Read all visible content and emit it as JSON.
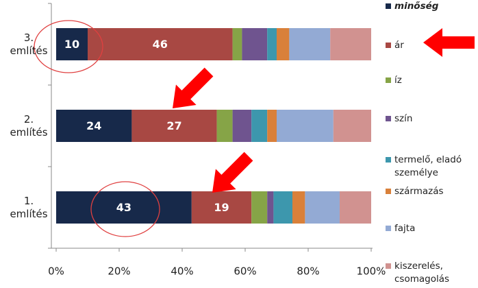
{
  "chart_data": {
    "type": "stacked-bar-horizontal",
    "categories": [
      "1. említés",
      "2. említés",
      "3. említés"
    ],
    "series": [
      {
        "name": "minőség",
        "color": "#17294a",
        "values": [
          43,
          24,
          10
        ],
        "show_labels": true
      },
      {
        "name": "ár",
        "color": "#a84843",
        "values": [
          19,
          27,
          46
        ],
        "show_labels": true
      },
      {
        "name": "íz",
        "color": "#86a447",
        "values": [
          5,
          5,
          3
        ]
      },
      {
        "name": "szín",
        "color": "#6f548f",
        "values": [
          2,
          6,
          8
        ]
      },
      {
        "name": "termelő, eladó személye",
        "color": "#3d97ad",
        "values": [
          6,
          5,
          3
        ]
      },
      {
        "name": "származás",
        "color": "#d9803a",
        "values": [
          4,
          3,
          4
        ]
      },
      {
        "name": "fajta",
        "color": "#93aad4",
        "values": [
          11,
          18,
          13
        ]
      },
      {
        "name": "kiszerelés, csomagolás",
        "color": "#d19290",
        "values": [
          10,
          12,
          13
        ]
      }
    ],
    "xlim": [
      0,
      100
    ],
    "xticks": [
      {
        "value": 0,
        "label": "0%"
      },
      {
        "value": 20,
        "label": "20%"
      },
      {
        "value": 40,
        "label": "40%"
      },
      {
        "value": 60,
        "label": "60%"
      },
      {
        "value": 80,
        "label": "80%"
      },
      {
        "value": 100,
        "label": "100%"
      }
    ],
    "grid": false
  }
}
